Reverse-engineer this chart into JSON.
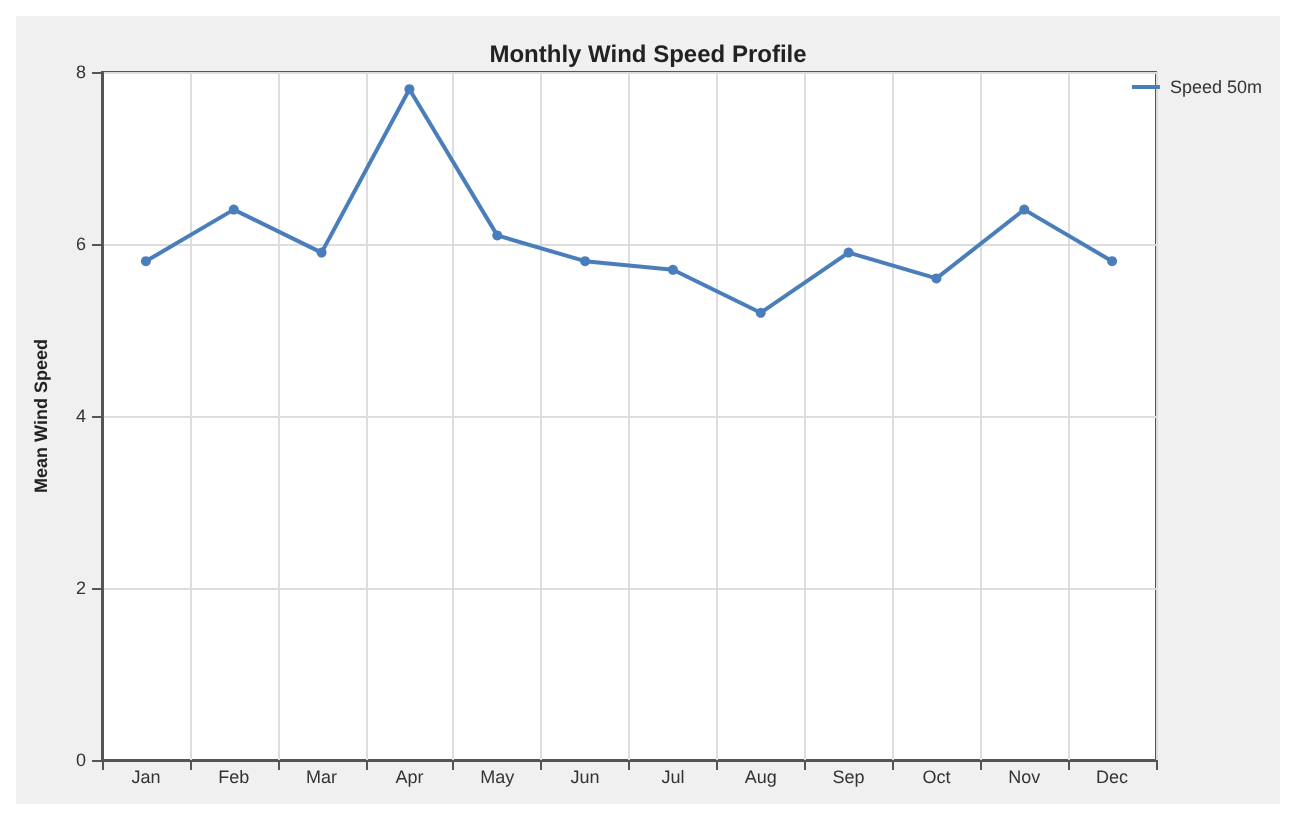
{
  "chart_data": {
    "type": "line",
    "title": "Monthly Wind Speed Profile",
    "ylabel": "Mean Wind Speed",
    "categories": [
      "Jan",
      "Feb",
      "Mar",
      "Apr",
      "May",
      "Jun",
      "Jul",
      "Aug",
      "Sep",
      "Oct",
      "Nov",
      "Dec"
    ],
    "series": [
      {
        "name": "Speed 50m",
        "color": "#4a7ebb",
        "values": [
          5.8,
          6.4,
          5.9,
          7.8,
          6.1,
          5.8,
          5.7,
          5.2,
          5.9,
          5.6,
          6.4,
          5.8
        ]
      }
    ],
    "ylim": [
      0,
      8
    ],
    "yticks": [
      0,
      2,
      4,
      6,
      8
    ],
    "grid": true,
    "legend": "top right",
    "marker": "circle",
    "line_style": "solid"
  }
}
